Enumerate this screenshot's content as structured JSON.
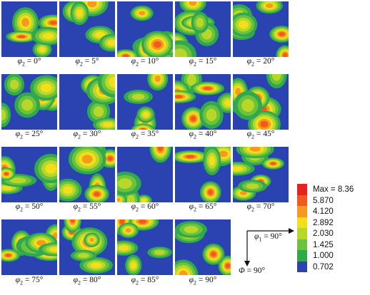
{
  "panels": [
    {
      "label": "φ2 = 0°"
    },
    {
      "label": "φ2 = 5°"
    },
    {
      "label": "φ2 = 10°"
    },
    {
      "label": "φ2 = 15°"
    },
    {
      "label": "φ2 = 20°"
    },
    {
      "label": "φ2 = 25°"
    },
    {
      "label": "φ2 = 30°"
    },
    {
      "label": "φ2 = 35°"
    },
    {
      "label": "φ2 = 40°"
    },
    {
      "label": "φ2 = 45°"
    },
    {
      "label": "φ2 = 50°"
    },
    {
      "label": "φ2 = 55°"
    },
    {
      "label": "φ2 = 60°"
    },
    {
      "label": "φ2 = 65°"
    },
    {
      "label": "φ2 = 70°"
    },
    {
      "label": "φ2 = 75°"
    },
    {
      "label": "φ2 = 80°"
    },
    {
      "label": "φ2 = 85°"
    },
    {
      "label": "φ2 = 90°"
    }
  ],
  "legend": {
    "entries": [
      {
        "label": "Max = 8.36",
        "color": "#e8231f"
      },
      {
        "label": "5.870",
        "color": "#f05a1c"
      },
      {
        "label": "4.120",
        "color": "#f59a1e"
      },
      {
        "label": "2.892",
        "color": "#f2df1a"
      },
      {
        "label": "2.030",
        "color": "#b7d82b"
      },
      {
        "label": "1.425",
        "color": "#6cc23a"
      },
      {
        "label": "1.000",
        "color": "#2fa84f"
      },
      {
        "label": "0.702",
        "color": "#2a43b0"
      }
    ]
  },
  "axes": {
    "phi1_label": "φ1 = 90°",
    "Phi_label": "Φ = 90°"
  }
}
